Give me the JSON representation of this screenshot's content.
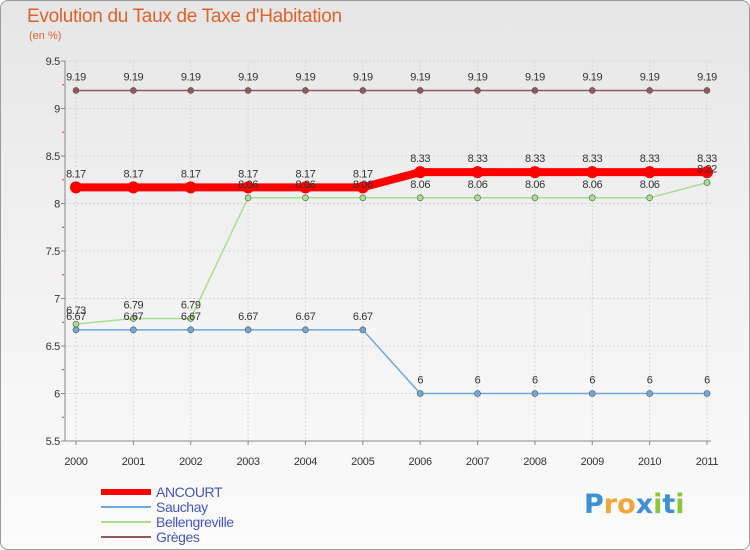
{
  "chart_data": {
    "type": "line",
    "title": "Evolution du Taux de Taxe d'Habitation",
    "subtitle": "(en %)",
    "xlabel": "",
    "ylabel": "",
    "categories": [
      "2000",
      "2001",
      "2002",
      "2003",
      "2004",
      "2005",
      "2006",
      "2007",
      "2008",
      "2009",
      "2010",
      "2011"
    ],
    "ylim": [
      5.5,
      9.5
    ],
    "yticks": [
      "5.5",
      "6",
      "6.5",
      "7",
      "7.5",
      "8",
      "8.5",
      "9",
      "9.5"
    ],
    "legend_position": "bottom-left",
    "series": [
      {
        "name": "ANCOURT",
        "color": "#ff0000",
        "values": [
          8.17,
          8.17,
          8.17,
          8.17,
          8.17,
          8.17,
          8.33,
          8.33,
          8.33,
          8.33,
          8.33,
          8.33
        ],
        "labels": [
          "8.17",
          "8.17",
          "8.17",
          "8.17",
          "8.17",
          "8.17",
          "8.33",
          "8.33",
          "8.33",
          "8.33",
          "8.33",
          "8.33"
        ]
      },
      {
        "name": "Sauchay",
        "color": "#6fa8dc",
        "values": [
          6.67,
          6.67,
          6.67,
          6.67,
          6.67,
          6.67,
          6,
          6,
          6,
          6,
          6,
          6
        ],
        "labels": [
          "6.67",
          "6.67",
          "6.67",
          "6.67",
          "6.67",
          "6.67",
          "6",
          "6",
          "6",
          "6",
          "6",
          "6"
        ]
      },
      {
        "name": "Bellengreville",
        "color": "#a6e08c",
        "values": [
          6.73,
          6.79,
          6.79,
          8.06,
          8.06,
          8.06,
          8.06,
          8.06,
          8.06,
          8.06,
          8.06,
          8.22
        ],
        "labels": [
          "6.73",
          "6.79",
          "6.79",
          "8.06",
          "8.06",
          "8.06",
          "8.06",
          "8.06",
          "8.06",
          "8.06",
          "8.06",
          "8.22"
        ]
      },
      {
        "name": "Grèges",
        "color": "#8e5a5a",
        "values": [
          9.19,
          9.19,
          9.19,
          9.19,
          9.19,
          9.19,
          9.19,
          9.19,
          9.19,
          9.19,
          9.19,
          9.19
        ],
        "labels": [
          "9.19",
          "9.19",
          "9.19",
          "9.19",
          "9.19",
          "9.19",
          "9.19",
          "9.19",
          "9.19",
          "9.19",
          "9.19",
          "9.19"
        ]
      }
    ]
  },
  "logo": {
    "letters": [
      "P",
      "r",
      "o",
      "x",
      "i",
      "t",
      "i"
    ],
    "colors": [
      "#3d8fd6",
      "#f2a53a",
      "#f2a53a",
      "#3d8fd6",
      "#8cc63f",
      "#3d8fd6",
      "#8cc63f"
    ]
  }
}
